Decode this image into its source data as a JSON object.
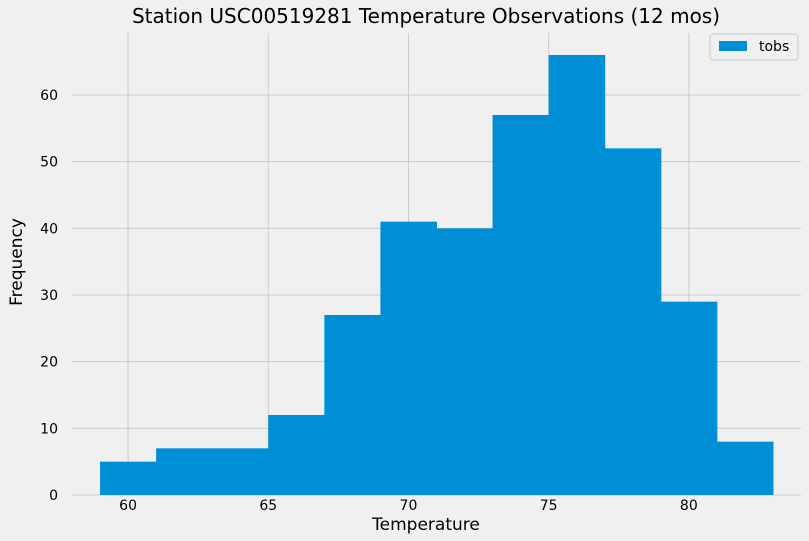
{
  "chart_data": {
    "type": "bar",
    "subtype": "histogram",
    "title": "Station USC00519281 Temperature Observations (12 mos)",
    "xlabel": "Temperature",
    "ylabel": "Frequency",
    "bin_edges": [
      59,
      61,
      63,
      65,
      67,
      69,
      71,
      73,
      75,
      77,
      79,
      81,
      83
    ],
    "values": [
      5,
      7,
      7,
      12,
      27,
      41,
      40,
      57,
      66,
      52,
      29,
      8
    ],
    "xlim": [
      58,
      84
    ],
    "ylim": [
      0,
      69.3
    ],
    "xticks": [
      60,
      65,
      70,
      75,
      80
    ],
    "yticks": [
      0,
      10,
      20,
      30,
      40,
      50,
      60
    ],
    "grid": true,
    "legend": {
      "placement": "top-right",
      "entries": [
        {
          "label": "tobs",
          "color": "#008fd5"
        }
      ]
    },
    "colors": {
      "bar": "#008fd5",
      "background": "#f0f0f0",
      "grid": "#cbcbcb"
    }
  }
}
